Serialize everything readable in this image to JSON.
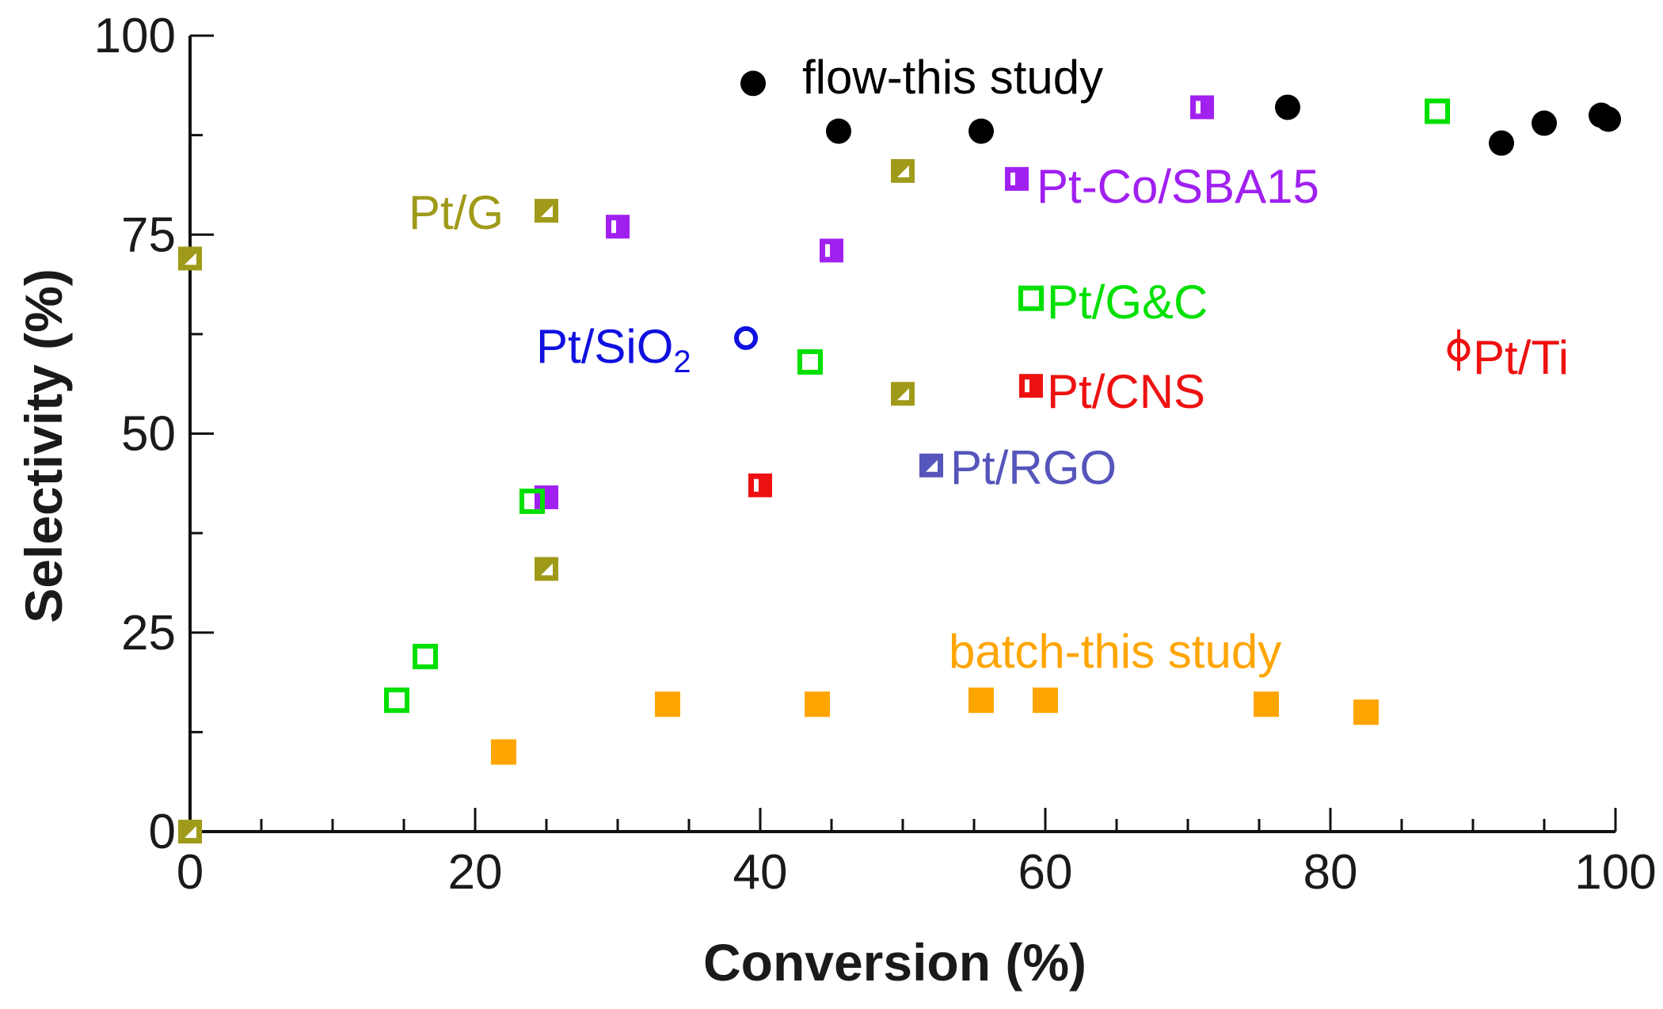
{
  "chart_data": {
    "type": "scatter",
    "title": "",
    "xlabel": "Conversion (%)",
    "ylabel": "Selectivity (%)",
    "xlim": [
      0,
      100
    ],
    "ylim": [
      0,
      100
    ],
    "x_ticks": [
      0,
      20,
      40,
      60,
      80,
      100
    ],
    "y_ticks": [
      0,
      25,
      50,
      75,
      100
    ],
    "x_ticks_text": [
      "0",
      "20",
      "40",
      "60",
      "80",
      "100"
    ],
    "y_ticks_text": [
      "0",
      "25",
      "50",
      "75",
      "100"
    ],
    "grid": false,
    "legend": "inline labels next to points",
    "series": [
      {
        "name": "flow-this study",
        "label": "flow-this study",
        "color": "#000000",
        "marker": "filled-circle",
        "x": [
          39.5,
          45.5,
          55.5,
          77,
          92,
          95,
          99,
          99.5
        ],
        "y": [
          94,
          88,
          88,
          91,
          86.5,
          89,
          90,
          89.5
        ]
      },
      {
        "name": "batch-this study",
        "label": "batch-this study",
        "color": "#FFA500",
        "marker": "filled-square",
        "x": [
          22,
          33.5,
          44,
          55.5,
          60,
          75.5,
          82.5
        ],
        "y": [
          10,
          16,
          16,
          16.5,
          16.5,
          16,
          15
        ]
      },
      {
        "name": "Pt/G",
        "label": "Pt/G",
        "color": "#A09A1A",
        "marker": "half-filled-square",
        "x": [
          0,
          0,
          25,
          25,
          50,
          50
        ],
        "y": [
          0,
          72,
          78,
          33,
          83,
          55
        ]
      },
      {
        "name": "Pt-Co/SBA15",
        "label": "Pt-Co/SBA15",
        "color": "#A020F0",
        "marker": "split-square",
        "x": [
          25,
          30,
          45,
          58,
          71
        ],
        "y": [
          42,
          76,
          73,
          82,
          91
        ]
      },
      {
        "name": "Pt/G&C",
        "label": "Pt/G&C",
        "color": "#00E000",
        "marker": "open-square",
        "x": [
          14.5,
          16.5,
          24,
          43.5,
          59,
          87.5
        ],
        "y": [
          16.5,
          22,
          41.5,
          59,
          67,
          90.5
        ]
      },
      {
        "name": "Pt/SiO2",
        "label": "Pt/SiO",
        "label_sub": "2",
        "color": "#1010E0",
        "marker": "open-circle",
        "x": [
          39
        ],
        "y": [
          62
        ]
      },
      {
        "name": "Pt/CNS",
        "label": "Pt/CNS",
        "color": "#EE1111",
        "marker": "split-square",
        "x": [
          40,
          59
        ],
        "y": [
          43.5,
          56
        ]
      },
      {
        "name": "Pt/RGO",
        "label": "Pt/RGO",
        "color": "#5555BB",
        "marker": "half-filled-square",
        "x": [
          52
        ],
        "y": [
          46
        ]
      },
      {
        "name": "Pt/Ti",
        "label": "Pt/Ti",
        "color": "#EE1111",
        "marker": "circle-errorbar",
        "x": [
          89
        ],
        "y": [
          60.5
        ]
      }
    ]
  }
}
